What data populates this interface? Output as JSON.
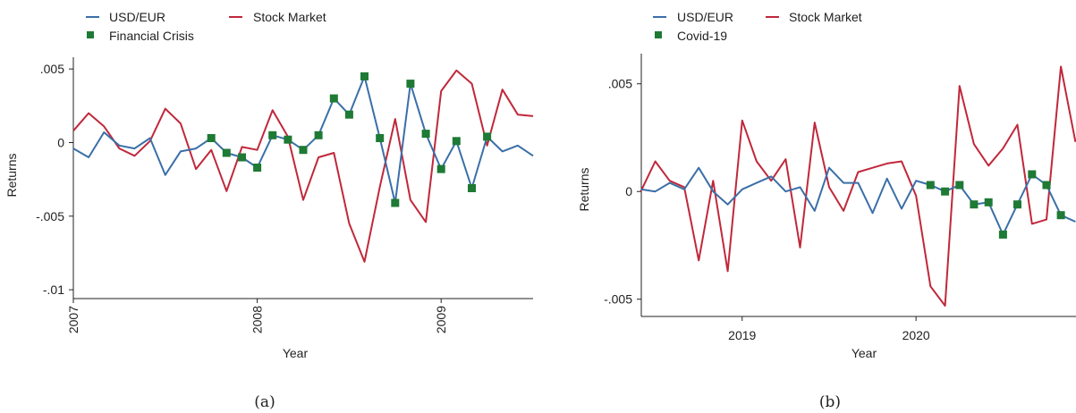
{
  "chart_data": [
    {
      "panel": "(a)",
      "type": "line",
      "xlabel": "Year",
      "ylabel": "Returns",
      "xlim": [
        2007,
        2009.5
      ],
      "ylim": [
        -0.0106,
        0.0058
      ],
      "x_ticks": [
        {
          "value": 2007,
          "label": "2007"
        },
        {
          "value": 2008,
          "label": "2008"
        },
        {
          "value": 2009,
          "label": "2009"
        }
      ],
      "y_ticks": [
        {
          "value": 0.005,
          "label": ".005"
        },
        {
          "value": 0,
          "label": "0"
        },
        {
          "value": -0.005,
          "label": "-.005"
        },
        {
          "value": -0.01,
          "label": "-.01"
        }
      ],
      "x_tick_rotation": "vertical",
      "legend": {
        "placement": "top-left",
        "entries": [
          "USD/EUR",
          "Stock Market",
          "Financial Crisis"
        ]
      },
      "colors": {
        "usd": "#3a6fa8",
        "stock": "#c0283a",
        "marker": "#1e7a34"
      },
      "series": [
        {
          "name": "USD/EUR",
          "style": "line",
          "x": [
            2007.0,
            2007.083,
            2007.167,
            2007.25,
            2007.333,
            2007.417,
            2007.5,
            2007.583,
            2007.667,
            2007.75,
            2007.833,
            2007.917,
            2008.0,
            2008.083,
            2008.167,
            2008.25,
            2008.333,
            2008.417,
            2008.5,
            2008.583,
            2008.667,
            2008.75,
            2008.833,
            2008.917,
            2009.0,
            2009.083,
            2009.167,
            2009.25,
            2009.333,
            2009.417,
            2009.5
          ],
          "y": [
            -0.0004,
            -0.001,
            0.0007,
            -0.0002,
            -0.0004,
            0.0003,
            -0.0022,
            -0.0006,
            -0.0004,
            0.0003,
            -0.0007,
            -0.001,
            -0.0017,
            0.0005,
            0.0002,
            -0.0005,
            0.0005,
            0.003,
            0.0019,
            0.0045,
            0.0003,
            -0.0041,
            0.004,
            0.0006,
            -0.0018,
            0.0001,
            -0.0031,
            0.0004,
            -0.0006,
            -0.0002,
            -0.0009
          ]
        },
        {
          "name": "Stock Market",
          "style": "line",
          "x": [
            2007.0,
            2007.083,
            2007.167,
            2007.25,
            2007.333,
            2007.417,
            2007.5,
            2007.583,
            2007.667,
            2007.75,
            2007.833,
            2007.917,
            2008.0,
            2008.083,
            2008.167,
            2008.25,
            2008.333,
            2008.417,
            2008.5,
            2008.583,
            2008.667,
            2008.75,
            2008.833,
            2008.917,
            2009.0,
            2009.083,
            2009.167,
            2009.25,
            2009.333,
            2009.417,
            2009.5
          ],
          "y": [
            0.0008,
            0.002,
            0.0011,
            -0.0004,
            -0.0009,
            0.0001,
            0.0023,
            0.0013,
            -0.0018,
            -0.0005,
            -0.0033,
            -0.0003,
            -0.0005,
            0.0022,
            0.0004,
            -0.0039,
            -0.001,
            -0.0007,
            -0.0055,
            -0.0081,
            -0.003,
            0.0016,
            -0.0039,
            -0.0054,
            0.0035,
            0.0049,
            0.004,
            -0.0002,
            0.0036,
            0.0019,
            0.0018
          ]
        },
        {
          "name": "Financial Crisis",
          "style": "marker",
          "x": [
            2007.75,
            2007.833,
            2007.917,
            2008.0,
            2008.083,
            2008.167,
            2008.25,
            2008.333,
            2008.417,
            2008.5,
            2008.583,
            2008.667,
            2008.75,
            2008.833,
            2008.917,
            2009.0,
            2009.083,
            2009.167,
            2009.25
          ],
          "y": [
            0.0003,
            -0.0007,
            -0.001,
            -0.0017,
            0.0005,
            0.0002,
            -0.0005,
            0.0005,
            0.003,
            0.0019,
            0.0045,
            0.0003,
            -0.0041,
            0.004,
            0.0006,
            -0.0018,
            0.0001,
            -0.0031,
            0.0004
          ]
        }
      ]
    },
    {
      "panel": "(b)",
      "type": "line",
      "xlabel": "Year",
      "ylabel": "Returns",
      "xlim": [
        2018.42,
        2020.92
      ],
      "ylim": [
        -0.0058,
        0.0064
      ],
      "x_ticks": [
        {
          "value": 2019,
          "label": "2019"
        },
        {
          "value": 2020,
          "label": "2020"
        }
      ],
      "y_ticks": [
        {
          "value": 0.005,
          "label": ".005"
        },
        {
          "value": 0,
          "label": "0"
        },
        {
          "value": -0.005,
          "label": "-.005"
        }
      ],
      "x_tick_rotation": "horizontal",
      "legend": {
        "placement": "top-left",
        "entries": [
          "USD/EUR",
          "Stock Market",
          "Covid-19"
        ]
      },
      "colors": {
        "usd": "#3a6fa8",
        "stock": "#c0283a",
        "marker": "#1e7a34"
      },
      "series": [
        {
          "name": "USD/EUR",
          "style": "line",
          "x": [
            2018.417,
            2018.5,
            2018.583,
            2018.667,
            2018.75,
            2018.833,
            2018.917,
            2019.0,
            2019.083,
            2019.167,
            2019.25,
            2019.333,
            2019.417,
            2019.5,
            2019.583,
            2019.667,
            2019.75,
            2019.833,
            2019.917,
            2020.0,
            2020.083,
            2020.167,
            2020.25,
            2020.333,
            2020.417,
            2020.5,
            2020.583,
            2020.667,
            2020.75,
            2020.833,
            2020.917
          ],
          "y": [
            0.0001,
            0.0,
            0.0004,
            0.0001,
            0.0011,
            0.0,
            -0.0006,
            0.0001,
            0.0004,
            0.0007,
            0.0,
            0.0002,
            -0.0009,
            0.0011,
            0.0004,
            0.0004,
            -0.001,
            0.0006,
            -0.0008,
            0.0005,
            0.0003,
            0.0,
            0.0003,
            -0.0006,
            -0.0005,
            -0.002,
            -0.0006,
            0.0008,
            0.0003,
            -0.0011,
            -0.0014
          ]
        },
        {
          "name": "Stock Market",
          "style": "line",
          "x": [
            2018.417,
            2018.5,
            2018.583,
            2018.667,
            2018.75,
            2018.833,
            2018.917,
            2019.0,
            2019.083,
            2019.167,
            2019.25,
            2019.333,
            2019.417,
            2019.5,
            2019.583,
            2019.667,
            2019.75,
            2019.833,
            2019.917,
            2020.0,
            2020.083,
            2020.167,
            2020.25,
            2020.333,
            2020.417,
            2020.5,
            2020.583,
            2020.667,
            2020.75,
            2020.833,
            2020.917
          ],
          "y": [
            0.0,
            0.0014,
            0.0005,
            0.0002,
            -0.0032,
            0.0005,
            -0.0037,
            0.0033,
            0.0014,
            0.0005,
            0.0015,
            -0.0026,
            0.0032,
            0.0002,
            -0.0009,
            0.0009,
            0.0011,
            0.0013,
            0.0014,
            -0.0002,
            -0.0044,
            -0.0053,
            0.0049,
            0.0022,
            0.0012,
            0.002,
            0.0031,
            -0.0015,
            -0.0013,
            0.0058,
            0.0023
          ]
        },
        {
          "name": "Covid-19",
          "style": "marker",
          "x": [
            2020.083,
            2020.167,
            2020.25,
            2020.333,
            2020.417,
            2020.5,
            2020.583,
            2020.667,
            2020.75,
            2020.833
          ],
          "y": [
            0.0003,
            0.0,
            0.0003,
            -0.0006,
            -0.0005,
            -0.002,
            -0.0006,
            0.0008,
            0.0003,
            -0.0011
          ]
        }
      ]
    }
  ]
}
